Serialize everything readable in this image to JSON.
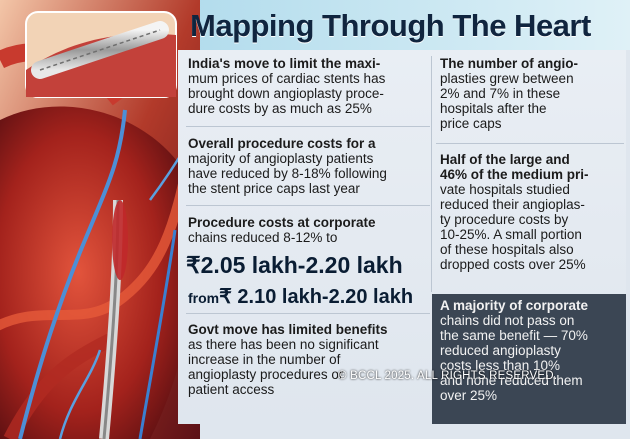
{
  "title": "Mapping Through The Heart",
  "left": {
    "p1": {
      "lead": "India's move",
      "rest": " to limit the maximum prices of cardiac stents has brought down angioplasty procedure costs by as much as ",
      "highlight": "25%",
      "lines": [
        "India's move to limit the maxi-",
        "mum prices of cardiac stents has",
        "brought down angioplasty proce-",
        "dure costs by as much as 25%"
      ]
    },
    "p2": {
      "lines": [
        "Overall procedure costs for a",
        "majority of angioplasty patients",
        "have reduced by 8-18% following",
        "the stent price caps last year"
      ]
    },
    "p3": {
      "lines": [
        "Procedure costs at corporate",
        "chains reduced 8-12% to"
      ]
    },
    "price_to": "₹2.05 lakh-2.20 lakh",
    "price_from_label": "from",
    "price_from": "₹ 2.10 lakh-2.20 lakh",
    "p4": {
      "lines": [
        "Govt move has limited benefits",
        "as there has been no significant",
        "increase in the number of",
        "angioplasty procedures or",
        "patient access"
      ]
    }
  },
  "right": {
    "p1": {
      "lines": [
        "The number of angio-",
        "plasties grew between",
        "2% and 7% in these",
        "hospitals after the",
        "price caps"
      ]
    },
    "p2": {
      "lines": [
        "Half of the large and",
        "46% of the medium pri-",
        "vate hospitals studied",
        "reduced their angioplas-",
        "ty procedure costs by",
        "10-25%. A small portion",
        "of these hospitals also",
        "dropped costs over 25%"
      ]
    },
    "p3": {
      "lines": [
        "A majority of corporate",
        "chains did not pass on",
        "the same benefit — 70%",
        "reduced angioplasty",
        "costs less than 10%",
        "and none reduced them",
        "over 25%"
      ]
    }
  },
  "watermark": "© BCCL 2025. ALL RIGHTS RESERVED.",
  "colors": {
    "panel": "#e6ecf2",
    "title": "#10253f",
    "dark_box": "#3b4654"
  }
}
